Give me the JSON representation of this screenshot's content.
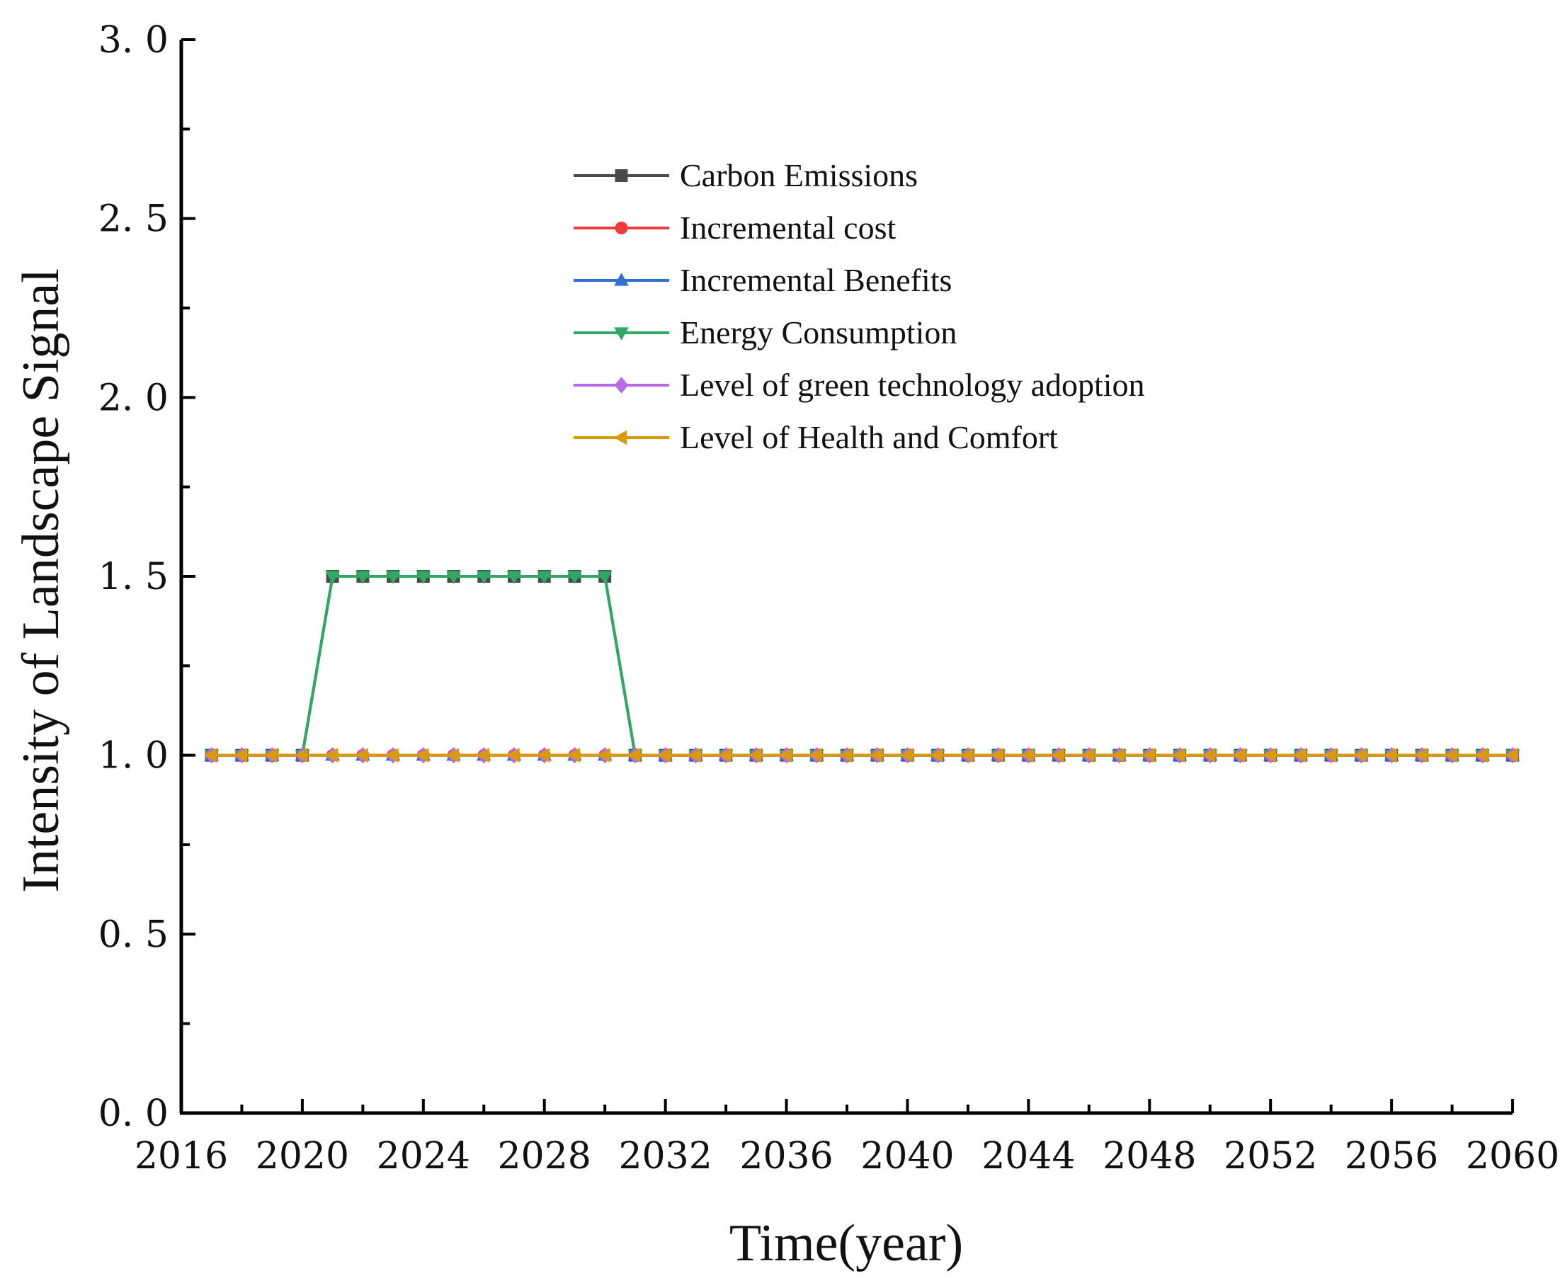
{
  "chart_data": {
    "type": "line",
    "title": "",
    "xlabel": "Time(year)",
    "ylabel": "Intensity of Landscape Signal",
    "xlim": [
      2016,
      2060
    ],
    "ylim": [
      0.0,
      3.0
    ],
    "x_tick_labels": [
      "2016",
      "2020",
      "2024",
      "2028",
      "2032",
      "2036",
      "2040",
      "2044",
      "2048",
      "2052",
      "2056",
      "2060"
    ],
    "y_tick_labels": [
      "0. 0",
      "0. 5",
      "1. 0",
      "1. 5",
      "2. 0",
      "2. 5",
      "3. 0"
    ],
    "grid": false,
    "legend_position": "upper-center",
    "x": [
      2017,
      2018,
      2019,
      2020,
      2021,
      2022,
      2023,
      2024,
      2025,
      2026,
      2027,
      2028,
      2029,
      2030,
      2031,
      2032,
      2033,
      2034,
      2035,
      2036,
      2037,
      2038,
      2039,
      2040,
      2041,
      2042,
      2043,
      2044,
      2045,
      2046,
      2047,
      2048,
      2049,
      2050,
      2051,
      2052,
      2053,
      2054,
      2055,
      2056,
      2057,
      2058,
      2059,
      2060
    ],
    "series": [
      {
        "name": "Carbon Emissions",
        "color": "#4a4a4a",
        "marker": "square",
        "values": [
          1,
          1,
          1,
          1,
          1.5,
          1.5,
          1.5,
          1.5,
          1.5,
          1.5,
          1.5,
          1.5,
          1.5,
          1.5,
          1,
          1,
          1,
          1,
          1,
          1,
          1,
          1,
          1,
          1,
          1,
          1,
          1,
          1,
          1,
          1,
          1,
          1,
          1,
          1,
          1,
          1,
          1,
          1,
          1,
          1,
          1,
          1,
          1,
          1
        ]
      },
      {
        "name": "Incremental cost",
        "color": "#ee3b3b",
        "marker": "circle",
        "values": [
          1,
          1,
          1,
          1,
          1,
          1,
          1,
          1,
          1,
          1,
          1,
          1,
          1,
          1,
          1,
          1,
          1,
          1,
          1,
          1,
          1,
          1,
          1,
          1,
          1,
          1,
          1,
          1,
          1,
          1,
          1,
          1,
          1,
          1,
          1,
          1,
          1,
          1,
          1,
          1,
          1,
          1,
          1,
          1
        ]
      },
      {
        "name": "Incremental Benefits",
        "color": "#2f6fd6",
        "marker": "triangle-up",
        "values": [
          1,
          1,
          1,
          1,
          1,
          1,
          1,
          1,
          1,
          1,
          1,
          1,
          1,
          1,
          1,
          1,
          1,
          1,
          1,
          1,
          1,
          1,
          1,
          1,
          1,
          1,
          1,
          1,
          1,
          1,
          1,
          1,
          1,
          1,
          1,
          1,
          1,
          1,
          1,
          1,
          1,
          1,
          1,
          1
        ]
      },
      {
        "name": "Energy Consumption",
        "color": "#2fa865",
        "marker": "triangle-down",
        "values": [
          1,
          1,
          1,
          1,
          1.5,
          1.5,
          1.5,
          1.5,
          1.5,
          1.5,
          1.5,
          1.5,
          1.5,
          1.5,
          1,
          1,
          1,
          1,
          1,
          1,
          1,
          1,
          1,
          1,
          1,
          1,
          1,
          1,
          1,
          1,
          1,
          1,
          1,
          1,
          1,
          1,
          1,
          1,
          1,
          1,
          1,
          1,
          1,
          1
        ]
      },
      {
        "name": "Level of green technology adoption",
        "color": "#b56be6",
        "marker": "diamond",
        "values": [
          1,
          1,
          1,
          1,
          1,
          1,
          1,
          1,
          1,
          1,
          1,
          1,
          1,
          1,
          1,
          1,
          1,
          1,
          1,
          1,
          1,
          1,
          1,
          1,
          1,
          1,
          1,
          1,
          1,
          1,
          1,
          1,
          1,
          1,
          1,
          1,
          1,
          1,
          1,
          1,
          1,
          1,
          1,
          1
        ]
      },
      {
        "name": "Level of Health and Comfort",
        "color": "#d99a0b",
        "marker": "triangle-left",
        "values": [
          1,
          1,
          1,
          1,
          1,
          1,
          1,
          1,
          1,
          1,
          1,
          1,
          1,
          1,
          1,
          1,
          1,
          1,
          1,
          1,
          1,
          1,
          1,
          1,
          1,
          1,
          1,
          1,
          1,
          1,
          1,
          1,
          1,
          1,
          1,
          1,
          1,
          1,
          1,
          1,
          1,
          1,
          1,
          1
        ]
      }
    ]
  }
}
